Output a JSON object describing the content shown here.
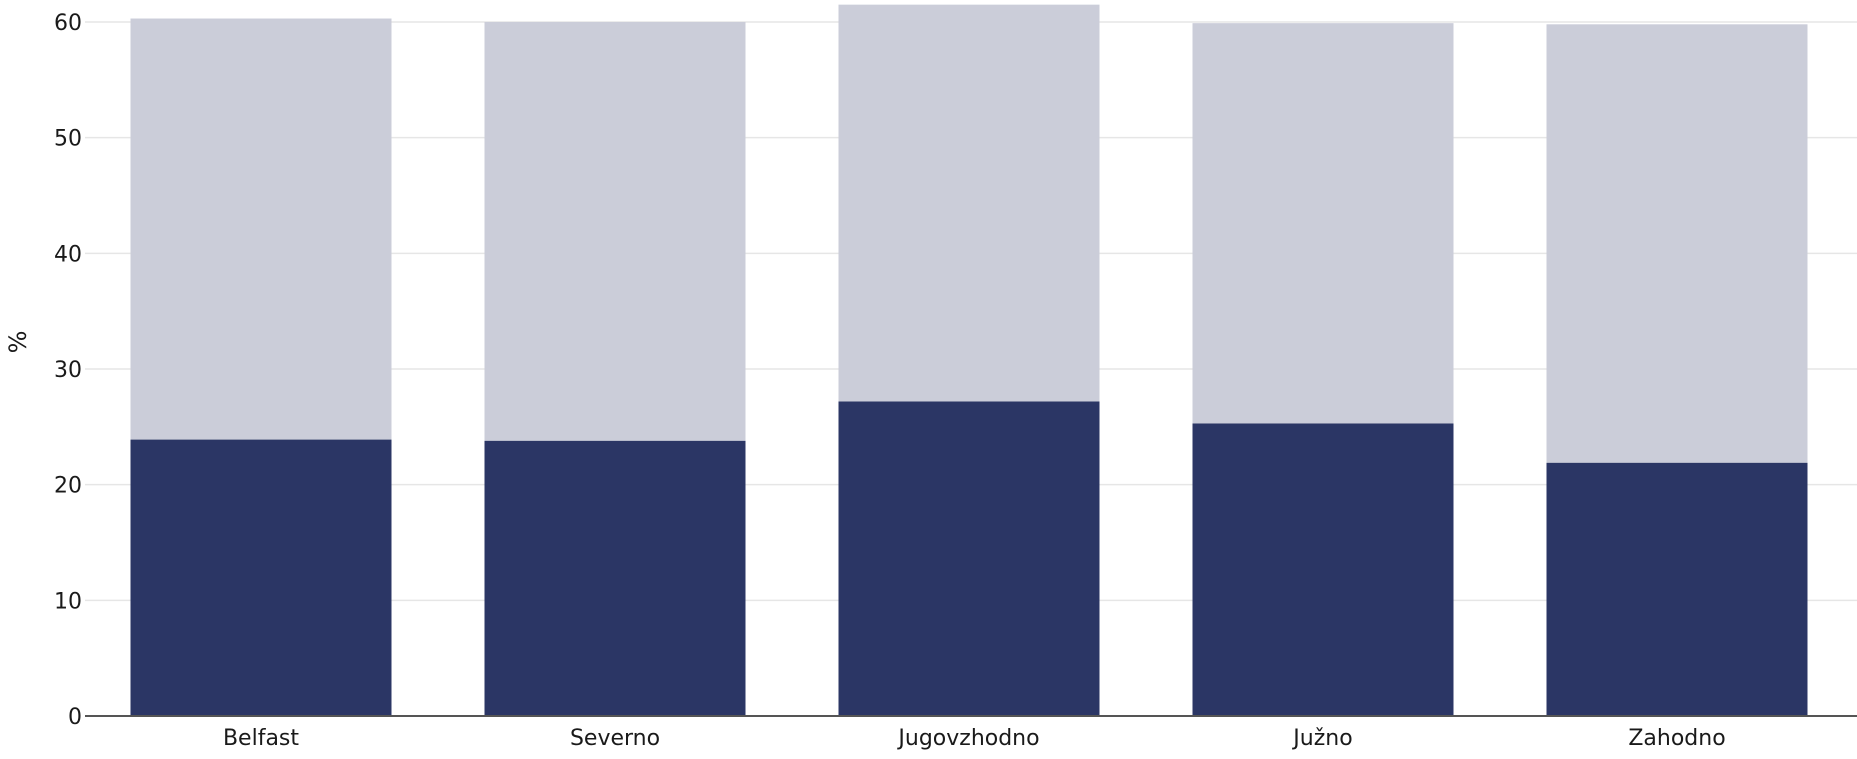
{
  "chart_data": {
    "type": "bar",
    "stacked": true,
    "categories": [
      "Belfast",
      "Severno",
      "Jugovzhodno",
      "Južno",
      "Zahodno"
    ],
    "series": [
      {
        "values": [
          23.9,
          23.8,
          27.2,
          25.3,
          21.9
        ],
        "color": "#2b3665"
      },
      {
        "values": [
          36.4,
          36.2,
          34.3,
          34.6,
          37.9
        ],
        "color": "#cbcdd9"
      }
    ],
    "ylabel": "%",
    "ylim": [
      0,
      60
    ],
    "yticks": [
      0,
      10,
      20,
      30,
      40,
      50,
      60
    ],
    "grid": true,
    "legend": "none"
  }
}
